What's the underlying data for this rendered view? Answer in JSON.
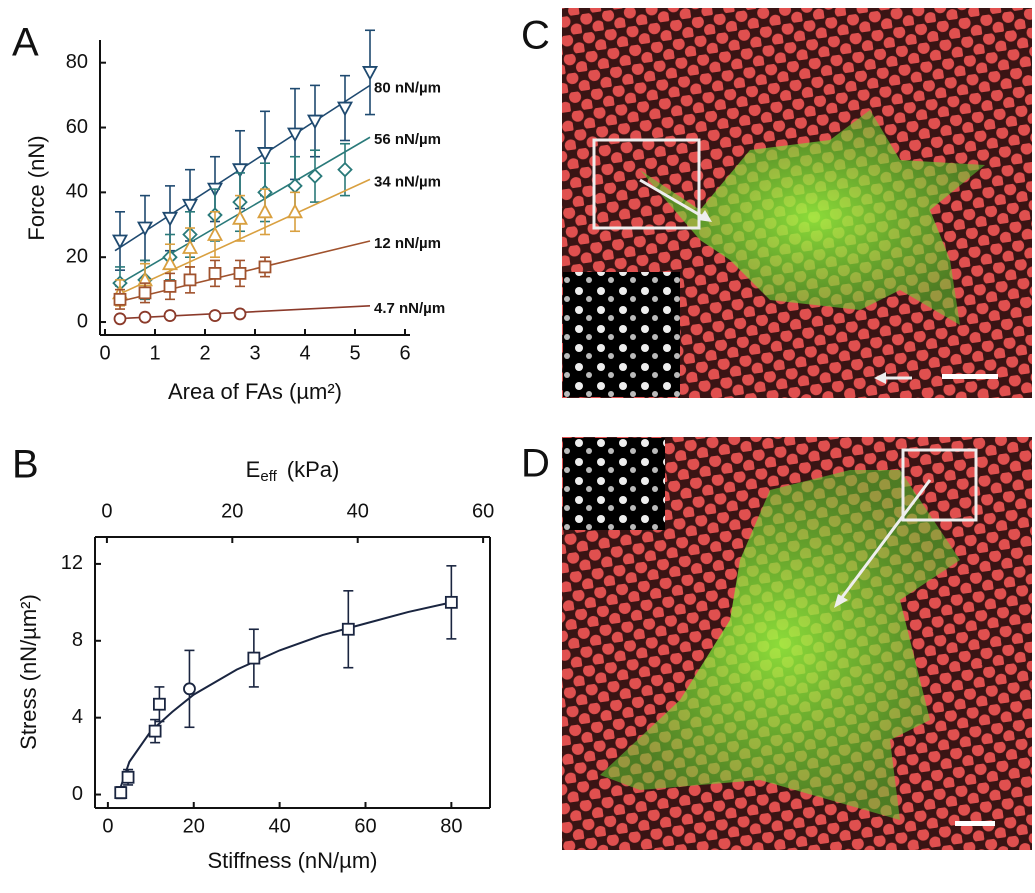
{
  "chart_data": [
    {
      "type": "scatter",
      "panel_label": "A",
      "xlabel": "Area of FAs (µm²)",
      "ylabel": "Force (nN)",
      "xlim": [
        -0.1,
        6.1
      ],
      "ylim": [
        -4,
        87
      ],
      "xticks": [
        0,
        1,
        2,
        3,
        4,
        5,
        6
      ],
      "yticks": [
        0,
        20,
        40,
        60,
        80
      ],
      "series": [
        {
          "name": "80 nN/µm",
          "color": "#1f4a70",
          "marker": "triangle-down",
          "x": [
            0.3,
            0.8,
            1.3,
            1.7,
            2.2,
            2.7,
            3.2,
            3.8,
            4.2,
            4.8,
            5.3
          ],
          "values": [
            25,
            29,
            32,
            36,
            41,
            47,
            52,
            58,
            62,
            66,
            77
          ],
          "errors": [
            9,
            10,
            10,
            11,
            10,
            12,
            13,
            14,
            11,
            10,
            13
          ],
          "fit": {
            "x": [
              0.2,
              5.3
            ],
            "y": [
              22,
              73
            ]
          }
        },
        {
          "name": "56 nN/µm",
          "color": "#2a7a7a",
          "marker": "diamond",
          "x": [
            0.3,
            0.8,
            1.3,
            1.7,
            2.2,
            2.7,
            3.2,
            3.8,
            4.2,
            4.8
          ],
          "values": [
            12,
            13,
            20,
            27,
            33,
            37,
            40,
            42,
            45,
            47
          ],
          "errors": [
            5,
            6,
            7,
            7,
            8,
            9,
            9,
            9,
            8,
            8
          ],
          "fit": {
            "x": [
              0.2,
              5.3
            ],
            "y": [
              11,
              57
            ]
          }
        },
        {
          "name": "34 nN/µm",
          "color": "#d9a040",
          "marker": "triangle",
          "x": [
            0.3,
            0.8,
            1.3,
            1.7,
            2.2,
            2.7,
            3.2,
            3.8
          ],
          "values": [
            9,
            13,
            18,
            23,
            27,
            32,
            34,
            34
          ],
          "errors": [
            4,
            5,
            6,
            6,
            7,
            7,
            7,
            6
          ],
          "fit": {
            "x": [
              0.2,
              5.3
            ],
            "y": [
              8,
              44
            ]
          }
        },
        {
          "name": "12 nN/µm",
          "color": "#a0522d",
          "marker": "square",
          "x": [
            0.3,
            0.8,
            1.3,
            1.7,
            2.2,
            2.7,
            3.2
          ],
          "values": [
            7,
            9,
            11,
            13,
            15,
            15,
            17
          ],
          "errors": [
            3,
            3,
            4,
            4,
            4,
            4,
            3
          ],
          "fit": {
            "x": [
              0.2,
              5.3
            ],
            "y": [
              6,
              25
            ]
          }
        },
        {
          "name": "4.7 nN/µm",
          "color": "#8b3a2a",
          "marker": "circle",
          "x": [
            0.3,
            0.8,
            1.3,
            2.2,
            2.7
          ],
          "values": [
            1,
            1.5,
            2,
            2,
            2.5
          ],
          "errors": [
            1,
            1,
            1,
            1,
            1
          ],
          "fit": {
            "x": [
              0.2,
              5.3
            ],
            "y": [
              1,
              5
            ]
          }
        }
      ]
    },
    {
      "type": "scatter",
      "panel_label": "B",
      "xlabel": "Stiffness (nN/µm)",
      "ylabel": "Stress (nN/µm²)",
      "x2label_main": "E",
      "x2label_sub": "eff",
      "x2label_unit": "(kPa)",
      "xlim": [
        -3,
        89
      ],
      "ylim": [
        -0.7,
        13.4
      ],
      "x2lim": [
        -1.9,
        61.1
      ],
      "xticks": [
        0,
        20,
        40,
        60,
        80
      ],
      "yticks": [
        0,
        4,
        8,
        12
      ],
      "x2ticks": [
        0,
        20,
        40,
        60
      ],
      "series": [
        {
          "color": "#1a2540",
          "marker": "square",
          "x": [
            3,
            4.7,
            11,
            12,
            34,
            56,
            80
          ],
          "values": [
            0.1,
            0.9,
            3.3,
            4.7,
            7.1,
            8.6,
            10
          ],
          "errors": [
            0.3,
            0.4,
            0.6,
            0.9,
            1.5,
            2,
            1.9
          ]
        },
        {
          "color": "#1a2540",
          "marker": "circle",
          "x": [
            19
          ],
          "values": [
            5.5
          ],
          "errors": [
            2
          ]
        }
      ],
      "fit": {
        "color": "#1a2540",
        "x": [
          3,
          5,
          10,
          15,
          20,
          30,
          40,
          50,
          60,
          70,
          80
        ],
        "y": [
          0.4,
          1.7,
          3.3,
          4.3,
          5.2,
          6.5,
          7.5,
          8.3,
          8.9,
          9.5,
          10
        ]
      }
    }
  ],
  "images": [
    {
      "label": "C"
    },
    {
      "label": "D"
    }
  ]
}
